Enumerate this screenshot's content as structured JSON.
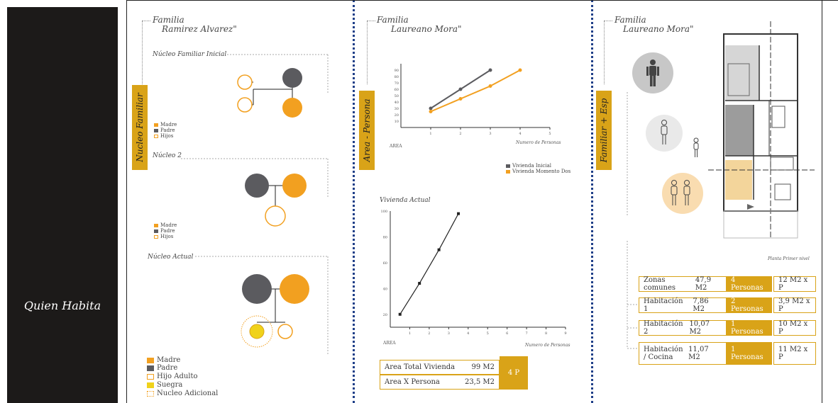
{
  "side": {
    "title": "Quien Habita"
  },
  "panel1": {
    "family_line1": "Familia",
    "family_line2": "Ramirez Alvarez\"",
    "vtab": "Nucleo Familiar",
    "sections": [
      "Núcleo Familiar Inicial",
      "Núcleo 2",
      "Núcleo Actual"
    ],
    "small_legend": [
      "Madre",
      "Padre",
      "Hijos"
    ],
    "big_legend": [
      "Madre",
      "Padre",
      "Hijo Adulto",
      "Suegra",
      "Nucleo Adicional"
    ]
  },
  "panel2": {
    "family_line1": "Familia",
    "family_line2": "Laureano Mora\"",
    "vtab": "Area - Persona",
    "chart1": {
      "xlabel": "Numero de Personas",
      "ylabel": "AREA",
      "legend": [
        "Vivienda Inicial",
        "Vivienda Momento Dos"
      ]
    },
    "chart2": {
      "title": "Vivienda Actual",
      "xlabel": "Numero de Personas",
      "ylabel": "AREA"
    },
    "summary": {
      "row1_label": "Area Total Vivienda",
      "row1_value": "99 M2",
      "row2_label": "Area X Persona",
      "row2_value": "23,5 M2",
      "persons": "4 P"
    }
  },
  "panel3": {
    "family_line1": "Familia",
    "family_line2": "Laureano Mora\"",
    "vtab": "Familiar + Esp",
    "plan_caption": "Planta Primer nivel",
    "rows": [
      {
        "zone": "Zonas comunes",
        "area": "47,9 M2",
        "persons": "4 Personas",
        "ratio": "12 M2 x P"
      },
      {
        "zone": "Habitación 1",
        "area": "7,86 M2",
        "persons": "2 Personas",
        "ratio": "3,9 M2 x P"
      },
      {
        "zone": "Habitación 2",
        "area": "10,07 M2",
        "persons": "1 Personas",
        "ratio": "10 M2 x P"
      },
      {
        "zone": "Habitación / Cocina",
        "area": "11,07 M2",
        "persons": "1 Personas",
        "ratio": "11 M2 x P"
      }
    ]
  },
  "chart_data": [
    {
      "type": "line",
      "x": [
        1,
        2,
        3,
        4,
        5
      ],
      "xticks": [
        "1",
        "2",
        "3",
        "4",
        "5"
      ],
      "yticks": [
        "10",
        "20",
        "30",
        "40",
        "50",
        "60",
        "70",
        "80",
        "90"
      ],
      "series": [
        {
          "name": "Vivienda Inicial",
          "color": "#5b5b5f",
          "points": [
            [
              1,
              30
            ],
            [
              2,
              60
            ],
            [
              3,
              90
            ]
          ]
        },
        {
          "name": "Vivienda Momento Dos",
          "color": "#f2a020",
          "points": [
            [
              1,
              25
            ],
            [
              2,
              45
            ],
            [
              3,
              65
            ],
            [
              4,
              90
            ]
          ]
        }
      ],
      "xlabel": "Numero de Personas",
      "ylabel": "AREA",
      "xlim": [
        0,
        5
      ],
      "ylim": [
        0,
        100
      ]
    },
    {
      "type": "line",
      "title": "Vivienda Actual",
      "xticks": [
        "1",
        "2",
        "3",
        "4",
        "5",
        "6",
        "7",
        "8",
        "9"
      ],
      "yticks": [
        "20",
        "40",
        "60",
        "80",
        "100"
      ],
      "series": [
        {
          "color": "#222222",
          "points": [
            [
              0.5,
              20
            ],
            [
              1.5,
              44
            ],
            [
              2.5,
              70
            ],
            [
              3.5,
              98
            ]
          ]
        }
      ],
      "xlabel": "Numero de Personas",
      "ylabel": "AREA",
      "xlim": [
        0,
        9
      ],
      "ylim": [
        10,
        100
      ]
    }
  ],
  "colors": {
    "gold": "#d9a318",
    "orange": "#f2a020",
    "dark_gray": "#5b5b5f",
    "yellow": "#f0d21a",
    "dots": "#1f3f88",
    "sidebar": "#1c1a19"
  }
}
